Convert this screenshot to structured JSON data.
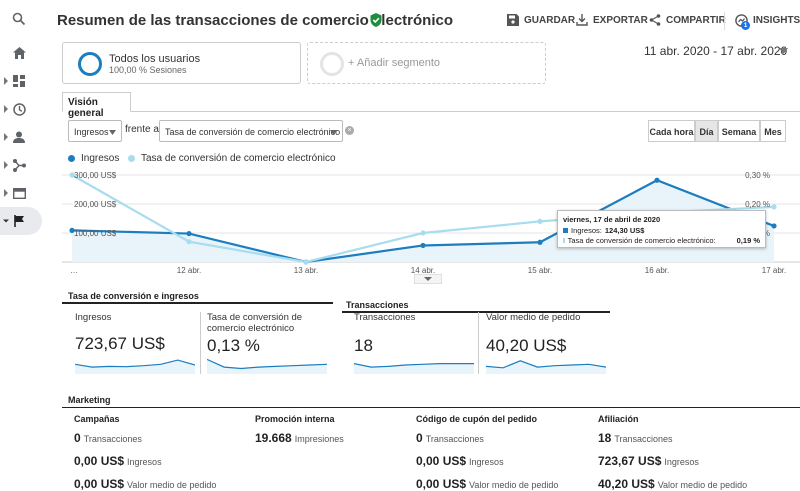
{
  "header": {
    "title": "Resumen de las transacciones de comercio electrónico",
    "save": "GUARDAR",
    "export": "EXPORTAR",
    "share": "COMPARTIR",
    "insights": "INSIGHTS",
    "insights_badge": "1"
  },
  "segments": {
    "active_name": "Todos los usuarios",
    "active_sub": "100,00 % Sesiones",
    "add_label": "+ Añadir segmento"
  },
  "date_range": "11 abr. 2020 - 17 abr. 2020",
  "tab": "Visión general",
  "metric_selector": {
    "primary": "Ingresos",
    "versus": "frente a",
    "secondary": "Tasa de conversión de comercio electrónico"
  },
  "granularity": [
    "Cada hora",
    "Día",
    "Semana",
    "Mes"
  ],
  "granularity_selected": "Día",
  "colors": {
    "primary": "#1c7dbf",
    "secondary": "#a8dcef",
    "area": "#e8f4fa"
  },
  "chart_data": {
    "type": "line",
    "categories": [
      "…",
      "12 abr.",
      "13 abr.",
      "14 abr.",
      "15 abr.",
      "16 abr.",
      "17 abr."
    ],
    "series": [
      {
        "name": "Ingresos",
        "axis": "left",
        "values": [
          109,
          98,
          0,
          57,
          68,
          282,
          124.3
        ]
      },
      {
        "name": "Tasa de conversión de comercio electrónico",
        "axis": "right",
        "values": [
          0.3,
          0.07,
          0.0,
          0.1,
          0.14,
          0.17,
          0.19
        ]
      }
    ],
    "left_ticks": [
      "300,00 US$",
      "200,00 US$",
      "100,00 US$"
    ],
    "right_ticks": [
      "0,30 %",
      "0,20 %",
      "0,10 %"
    ],
    "ylim_left": [
      0,
      300
    ],
    "ylim_right": [
      0,
      0.3
    ],
    "grid": true
  },
  "tooltip": {
    "date": "viernes, 17 de abril de 2020",
    "primary_label": "Ingresos:",
    "primary_value": "124,30 US$",
    "secondary_label": "Tasa de conversión de comercio electrónico:",
    "secondary_value": "0,19 %"
  },
  "sections": {
    "conv": "Tasa de conversión e ingresos",
    "trans": "Transacciones",
    "marketing": "Marketing"
  },
  "cards": [
    {
      "label": "Ingresos",
      "value": "723,67 US$",
      "spark": [
        0.55,
        0.35,
        0.4,
        0.38,
        0.45,
        0.55,
        0.85,
        0.5
      ]
    },
    {
      "label": "Tasa de conversión de comercio electrónico",
      "value": "0,13 %",
      "spark": [
        0.9,
        0.35,
        0.25,
        0.35,
        0.4,
        0.45,
        0.5,
        0.55
      ]
    },
    {
      "label": "Transacciones",
      "value": "18",
      "spark": [
        0.6,
        0.35,
        0.4,
        0.5,
        0.55,
        0.6,
        0.6,
        0.6
      ]
    },
    {
      "label": "Valor medio de pedido",
      "value": "40,20 US$",
      "spark": [
        0.4,
        0.3,
        0.8,
        0.35,
        0.45,
        0.5,
        0.55,
        0.35
      ]
    }
  ],
  "marketing": [
    {
      "heading": "Campañas",
      "rows": [
        {
          "v": "0",
          "u": "Transacciones"
        },
        {
          "v": "0,00 US$",
          "u": "Ingresos"
        },
        {
          "v": "0,00 US$",
          "u": "Valor medio de pedido"
        }
      ]
    },
    {
      "heading": "Promoción interna",
      "rows": [
        {
          "v": "19.668",
          "u": "Impresiones"
        }
      ]
    },
    {
      "heading": "Código de cupón del pedido",
      "rows": [
        {
          "v": "0",
          "u": "Transacciones"
        },
        {
          "v": "0,00 US$",
          "u": "Ingresos"
        },
        {
          "v": "0,00 US$",
          "u": "Valor medio de pedido"
        }
      ]
    },
    {
      "heading": "Afiliación",
      "rows": [
        {
          "v": "18",
          "u": "Transacciones"
        },
        {
          "v": "723,67 US$",
          "u": "Ingresos"
        },
        {
          "v": "40,20 US$",
          "u": "Valor medio de pedido"
        }
      ]
    }
  ],
  "rail_icons": [
    "search-icon",
    "home-icon",
    "customization-icon",
    "realtime-icon",
    "audience-icon",
    "acquisition-icon",
    "behavior-icon",
    "conversions-icon"
  ]
}
